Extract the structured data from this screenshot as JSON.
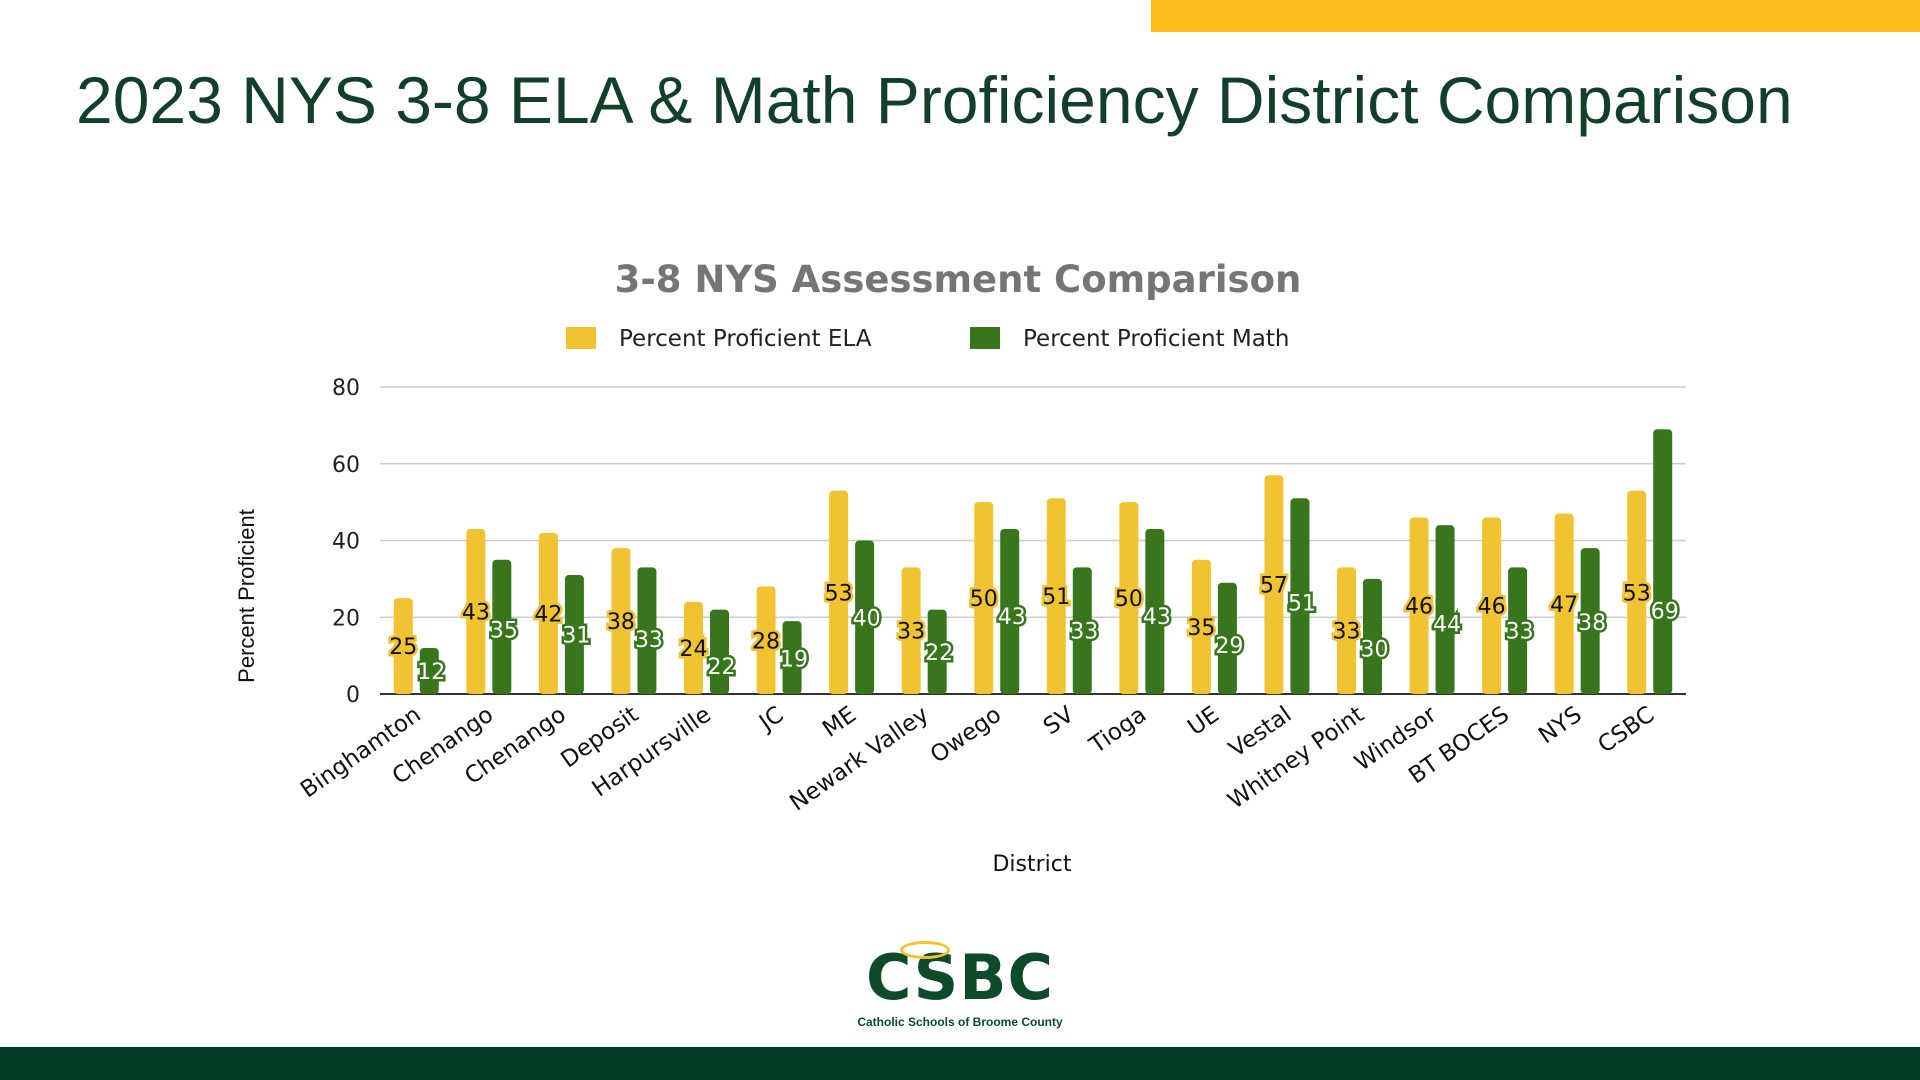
{
  "slide": {
    "title": "2023 NYS 3-8 ELA & Math Proficiency District Comparison",
    "logo_text": "CSBC",
    "logo_subtitle": "Catholic Schools of Broome County",
    "colors": {
      "accent_yellow": "#fbbc1c",
      "brand_green": "#013d22"
    }
  },
  "chart_data": {
    "type": "bar",
    "title": "3-8 NYS Assessment Comparison",
    "xlabel": "District",
    "ylabel": "Percent Proficient",
    "ylim": [
      0,
      80
    ],
    "yticks": [
      "0",
      "20",
      "40",
      "60",
      "80"
    ],
    "grid": true,
    "legend_position": "top",
    "categories": [
      "Binghamton",
      "Chenango",
      "Chenango",
      "Deposit",
      "Harpursville",
      "JC",
      "ME",
      "Newark Valley",
      "Owego",
      "SV",
      "Tioga",
      "UE",
      "Vestal",
      "Whitney Point",
      "Windsor",
      "BT BOCES",
      "NYS",
      "CSBC"
    ],
    "series": [
      {
        "name": "Percent Proficient ELA",
        "color": "#f1c232",
        "values": [
          25,
          43,
          42,
          38,
          24,
          28,
          53,
          33,
          50,
          51,
          50,
          35,
          57,
          33,
          46,
          46,
          47,
          53
        ]
      },
      {
        "name": "Percent Proficient Math",
        "color": "#38761d",
        "values": [
          12,
          35,
          31,
          33,
          22,
          19,
          40,
          22,
          43,
          33,
          43,
          29,
          51,
          30,
          44,
          33,
          38,
          69
        ]
      }
    ]
  }
}
